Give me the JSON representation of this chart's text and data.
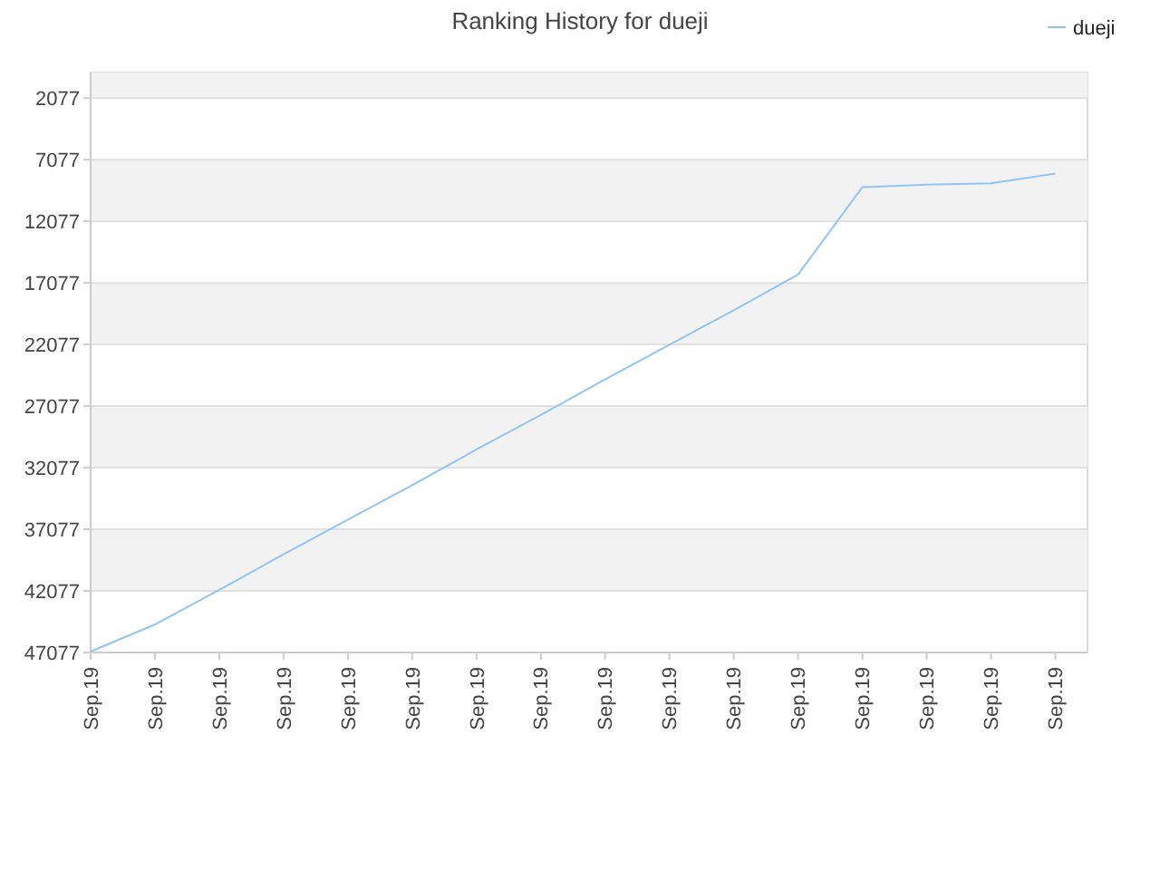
{
  "chart_data": {
    "type": "line",
    "title": "Ranking History for dueji",
    "categories": [
      "Sep.19",
      "Sep.19",
      "Sep.19",
      "Sep.19",
      "Sep.19",
      "Sep.19",
      "Sep.19",
      "Sep.19",
      "Sep.19",
      "Sep.19",
      "Sep.19",
      "Sep.19",
      "Sep.19",
      "Sep.19",
      "Sep.19",
      "Sep.19"
    ],
    "ylim": [
      47077,
      1
    ],
    "yticks": [
      2077,
      7077,
      12077,
      17077,
      22077,
      27077,
      32077,
      37077,
      42077,
      47077
    ],
    "grid": "y",
    "legend": "top right",
    "marker": "none",
    "series": [
      {
        "name": "dueji",
        "color": "#90c4f5",
        "values": [
          47000,
          44800,
          42000,
          39100,
          36300,
          33500,
          30600,
          27800,
          24900,
          22100,
          19300,
          16400,
          9300,
          9100,
          9000,
          8200
        ]
      }
    ]
  }
}
